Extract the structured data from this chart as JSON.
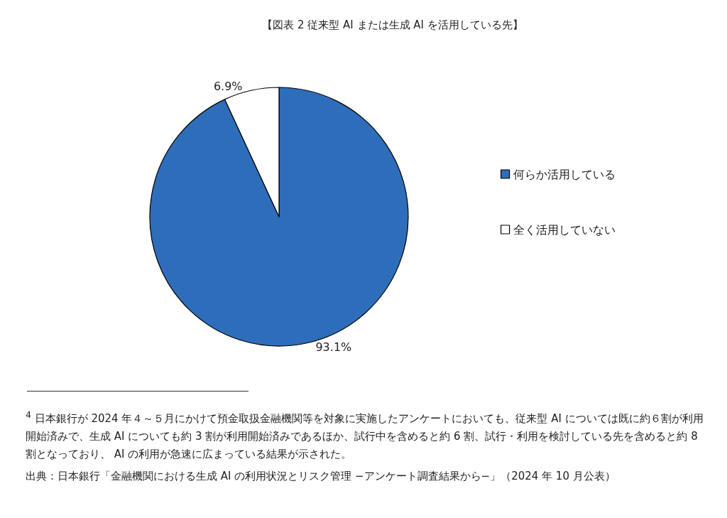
{
  "chart_data": {
    "type": "pie",
    "title": "【図表 2 従来型 AI または生成 AI を活用している先】",
    "categories": [
      "何らか活用している",
      "全く活用していない"
    ],
    "values": [
      93.1,
      6.9
    ],
    "colors": [
      "#2e6db9",
      "#ffffff"
    ],
    "value_labels": [
      "93.1%",
      "6.9%"
    ],
    "legend": "right",
    "annotations": [
      "$^{4}$ 日本銀行が 2024 年４～５月にかけて預金取扱金融機関等を対象に実施したアンケートにおいても、従来型 AI については既に約６割が利用開始済みで、生成 AI についても約 3 割が利用開始済みであるほか、試行中を含めると約 6 割、試行・利用を検討している先を含めると約 8 割となっており、 AI の利用が急速に広まっている結果が示された。",
      "出典：日本銀行「金融機関における生成 AI の利用状況とリスク管理 −アンケート調査結果から−」（2024 年 10 月公表）"
    ]
  }
}
